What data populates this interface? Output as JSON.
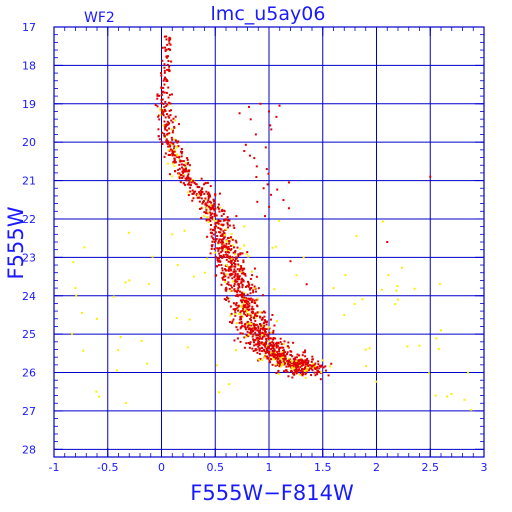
{
  "chart_data": {
    "type": "scatter",
    "title": "lmc_u5ay06",
    "corner_label": "WF2",
    "xlabel": "F555W−F814W",
    "ylabel": "F555W",
    "xlim": [
      -1,
      3
    ],
    "ylim": [
      28.2,
      17
    ],
    "y_inverted": true,
    "grid": true,
    "x_ticks": [
      -1,
      -0.5,
      0,
      0.5,
      1,
      1.5,
      2,
      2.5,
      3
    ],
    "x_tick_labels": [
      "-1",
      "-0.5",
      "0",
      "0.5",
      "1",
      "1.5",
      "2",
      "2.5",
      "3"
    ],
    "y_ticks": [
      17,
      18,
      19,
      20,
      21,
      22,
      23,
      24,
      25,
      26,
      27,
      28
    ],
    "y_tick_labels": [
      "17",
      "18",
      "19",
      "20",
      "21",
      "22",
      "23",
      "24",
      "25",
      "26",
      "27",
      "28"
    ],
    "colors": {
      "frame": "#0000cc",
      "grid": "#0000cc",
      "text": "#1a1aff",
      "series_main": "#e00000",
      "series_secondary": "#ffee00"
    },
    "series": [
      {
        "color": "#e00000",
        "description_points": [
          [
            0.08,
            17.3
          ],
          [
            0.05,
            17.8
          ],
          [
            0.02,
            18.4
          ],
          [
            0.0,
            18.9
          ],
          [
            0.02,
            19.3
          ],
          [
            0.05,
            19.8
          ],
          [
            0.1,
            20.3
          ],
          [
            0.2,
            20.8
          ],
          [
            0.35,
            21.3
          ],
          [
            0.5,
            21.9
          ],
          [
            0.58,
            22.5
          ],
          [
            0.65,
            23.1
          ],
          [
            0.72,
            23.7
          ],
          [
            0.8,
            24.3
          ],
          [
            0.9,
            24.9
          ],
          [
            1.05,
            25.4
          ],
          [
            1.25,
            25.8
          ],
          [
            1.45,
            26.0
          ],
          [
            0.92,
            19.0
          ],
          [
            1.0,
            19.2
          ],
          [
            0.98,
            20.7
          ],
          [
            0.95,
            21.2
          ],
          [
            2.5,
            20.9
          ],
          [
            2.1,
            22.6
          ],
          [
            1.35,
            23.7
          ],
          [
            1.2,
            23.1
          ]
        ]
      },
      {
        "color": "#ffee00",
        "description_points": [
          [
            -0.8,
            23.8
          ],
          [
            -0.6,
            24.6
          ],
          [
            -0.3,
            23.6
          ],
          [
            0.1,
            22.4
          ],
          [
            0.15,
            23.2
          ],
          [
            0.3,
            23.5
          ],
          [
            0.6,
            22.8
          ],
          [
            1.7,
            24.5
          ],
          [
            2.2,
            24.1
          ],
          [
            2.6,
            24.9
          ],
          [
            2.85,
            26.0
          ],
          [
            2.55,
            26.6
          ],
          [
            1.9,
            25.4
          ],
          [
            2.4,
            25.3
          ],
          [
            1.6,
            23.8
          ]
        ]
      }
    ],
    "sequence_ridge": [
      [
        0.02,
        18.7
      ],
      [
        0.04,
        19.3
      ],
      [
        0.08,
        19.9
      ],
      [
        0.14,
        20.4
      ],
      [
        0.24,
        20.9
      ],
      [
        0.38,
        21.4
      ],
      [
        0.5,
        21.9
      ],
      [
        0.57,
        22.4
      ],
      [
        0.63,
        22.9
      ],
      [
        0.68,
        23.4
      ],
      [
        0.74,
        23.9
      ],
      [
        0.8,
        24.4
      ],
      [
        0.88,
        24.9
      ],
      [
        0.98,
        25.3
      ],
      [
        1.1,
        25.6
      ],
      [
        1.25,
        25.8
      ],
      [
        1.4,
        25.95
      ]
    ],
    "sequence_tip": [
      [
        0.07,
        17.25
      ],
      [
        0.04,
        18.0
      ],
      [
        0.02,
        18.7
      ]
    ]
  }
}
